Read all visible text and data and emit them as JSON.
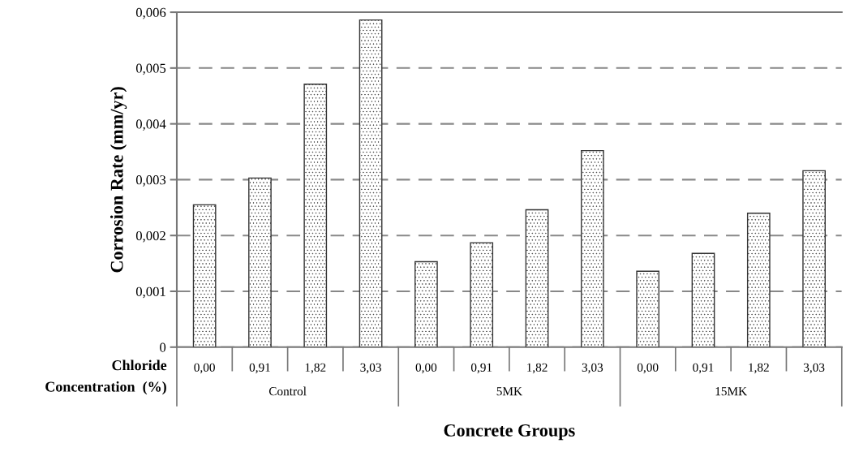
{
  "chart_data": {
    "type": "bar",
    "xlabel": "Concrete Groups",
    "ylabel": "Corrosion Rate (mm/yr)",
    "categories": [
      "0,00",
      "0,91",
      "1,82",
      "3,03",
      "0,00",
      "0,91",
      "1,82",
      "3,03",
      "0,00",
      "0,91",
      "1,82",
      "3,03"
    ],
    "values": [
      0.00255,
      0.00303,
      0.00471,
      0.00586,
      0.00153,
      0.00187,
      0.00246,
      0.00352,
      0.00136,
      0.00168,
      0.0024,
      0.00316
    ],
    "color": "#333333",
    "ylim": [
      0,
      0.006
    ],
    "yticks": [
      0,
      {
        "value": 0.001,
        "label": "0,001"
      },
      {
        "value": 0.002,
        "label": "0,002"
      },
      {
        "value": 0.003,
        "label": "0,003"
      },
      {
        "value": 0.004,
        "label": "0,004"
      },
      {
        "value": 0.005,
        "label": "0,005"
      },
      {
        "value": 0.006,
        "label": "0,006"
      }
    ],
    "grid": "y",
    "annotations": [
      "Chloride\nConcentration  (%)",
      "Control",
      "5MK",
      "15MK"
    ]
  }
}
